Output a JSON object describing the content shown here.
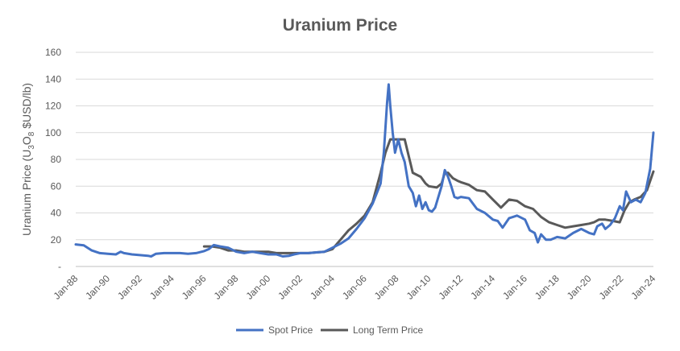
{
  "chart_data": {
    "type": "line",
    "title": "Uranium Price",
    "ylabel_parts": [
      "Uranium Price (U",
      "3",
      "O",
      "8",
      " $USD/lb)"
    ],
    "xlabel": "",
    "ylim": [
      0,
      160
    ],
    "y_ticks": [
      {
        "value": 0,
        "label": "-"
      },
      {
        "value": 20,
        "label": "20"
      },
      {
        "value": 40,
        "label": "40"
      },
      {
        "value": 60,
        "label": "60"
      },
      {
        "value": 80,
        "label": "80"
      },
      {
        "value": 100,
        "label": "100"
      },
      {
        "value": 120,
        "label": "120"
      },
      {
        "value": 140,
        "label": "140"
      },
      {
        "value": 160,
        "label": "160"
      }
    ],
    "x_ticks": [
      {
        "value": 1988,
        "label": "Jan-88"
      },
      {
        "value": 1990,
        "label": "Jan-90"
      },
      {
        "value": 1992,
        "label": "Jan-92"
      },
      {
        "value": 1994,
        "label": "Jan-94"
      },
      {
        "value": 1996,
        "label": "Jan-96"
      },
      {
        "value": 1998,
        "label": "Jan-98"
      },
      {
        "value": 2000,
        "label": "Jan-00"
      },
      {
        "value": 2002,
        "label": "Jan-02"
      },
      {
        "value": 2004,
        "label": "Jan-04"
      },
      {
        "value": 2006,
        "label": "Jan-06"
      },
      {
        "value": 2008,
        "label": "Jan-08"
      },
      {
        "value": 2010,
        "label": "Jan-10"
      },
      {
        "value": 2012,
        "label": "Jan-12"
      },
      {
        "value": 2014,
        "label": "Jan-14"
      },
      {
        "value": 2016,
        "label": "Jan-16"
      },
      {
        "value": 2018,
        "label": "Jan-18"
      },
      {
        "value": 2020,
        "label": "Jan-20"
      },
      {
        "value": 2022,
        "label": "Jan-22"
      },
      {
        "value": 2024,
        "label": "Jan-24"
      }
    ],
    "xlim": [
      1988,
      2024
    ],
    "grid": true,
    "legend_position": "bottom",
    "series": [
      {
        "name": "Spot Price",
        "color": "#4472C4",
        "x": [
          1988.0,
          1988.5,
          1989.0,
          1989.5,
          1990.0,
          1990.5,
          1990.8,
          1991.0,
          1991.5,
          1992.0,
          1992.5,
          1992.7,
          1993.0,
          1993.5,
          1994.0,
          1994.5,
          1995.0,
          1995.5,
          1996.0,
          1996.3,
          1996.6,
          1997.0,
          1997.5,
          1998.0,
          1998.5,
          1999.0,
          1999.5,
          2000.0,
          2000.5,
          2000.9,
          2001.3,
          2001.6,
          2002.0,
          2002.5,
          2003.0,
          2003.5,
          2004.0,
          2004.5,
          2005.0,
          2005.5,
          2006.0,
          2006.5,
          2007.0,
          2007.2,
          2007.4,
          2007.5,
          2007.6,
          2007.75,
          2007.9,
          2008.1,
          2008.3,
          2008.5,
          2008.75,
          2009.0,
          2009.2,
          2009.4,
          2009.6,
          2009.8,
          2010.0,
          2010.2,
          2010.4,
          2010.6,
          2010.8,
          2011.0,
          2011.2,
          2011.4,
          2011.6,
          2011.8,
          2012.0,
          2012.5,
          2013.0,
          2013.5,
          2014.0,
          2014.3,
          2014.6,
          2015.0,
          2015.5,
          2016.0,
          2016.3,
          2016.6,
          2016.8,
          2017.0,
          2017.3,
          2017.6,
          2018.0,
          2018.5,
          2019.0,
          2019.5,
          2020.0,
          2020.3,
          2020.5,
          2020.8,
          2021.0,
          2021.3,
          2021.6,
          2021.9,
          2022.1,
          2022.3,
          2022.6,
          2022.9,
          2023.2,
          2023.5,
          2023.8,
          2024.0
        ],
        "values": [
          16.5,
          15.8,
          12,
          10,
          9.5,
          9,
          11,
          10,
          9,
          8.5,
          8,
          7.5,
          9.5,
          10,
          10,
          10,
          9.5,
          10,
          11.5,
          13,
          16,
          15,
          14,
          11,
          10,
          11,
          10,
          9,
          9,
          7.5,
          8,
          9,
          10,
          10,
          10.5,
          11,
          14,
          17,
          21,
          28,
          36,
          47,
          62,
          85,
          122,
          136,
          120,
          100,
          85,
          95,
          85,
          78,
          60,
          55,
          45,
          53,
          43,
          48,
          42,
          41,
          44,
          52,
          60,
          72,
          67,
          60,
          52,
          51,
          52,
          51,
          43,
          40,
          35,
          34,
          29,
          36,
          38,
          35,
          27,
          25,
          18,
          24,
          20,
          20,
          22,
          21,
          25,
          28,
          25,
          24,
          30,
          32,
          28,
          31,
          36,
          45,
          42,
          56,
          48,
          50,
          48,
          55,
          73,
          100
        ],
        "width": 3
      },
      {
        "name": "Long Term Price",
        "color": "#595959",
        "x": [
          1996.0,
          1996.5,
          1997.0,
          1997.5,
          1998.0,
          1998.5,
          1999.0,
          1999.5,
          2000.0,
          2000.5,
          2001.0,
          2001.5,
          2002.0,
          2002.5,
          2003.0,
          2003.5,
          2004.0,
          2004.5,
          2005.0,
          2005.5,
          2006.0,
          2006.5,
          2007.0,
          2007.3,
          2007.6,
          2008.0,
          2008.5,
          2008.8,
          2009.0,
          2009.5,
          2009.8,
          2010.0,
          2010.5,
          2010.8,
          2011.0,
          2011.2,
          2011.5,
          2011.8,
          2012.0,
          2012.5,
          2013.0,
          2013.5,
          2014.0,
          2014.5,
          2015.0,
          2015.5,
          2016.0,
          2016.5,
          2017.0,
          2017.5,
          2018.0,
          2018.5,
          2019.0,
          2019.5,
          2020.0,
          2020.3,
          2020.6,
          2021.0,
          2021.5,
          2021.9,
          2022.2,
          2022.5,
          2022.8,
          2023.2,
          2023.6,
          2024.0
        ],
        "values": [
          15,
          15,
          14,
          12,
          12,
          11,
          11,
          11,
          11,
          10,
          10,
          10,
          10,
          10,
          10.5,
          11,
          13,
          20,
          27,
          32,
          38,
          48,
          70,
          85,
          95,
          95,
          95,
          80,
          70,
          67,
          62,
          60,
          59,
          62,
          70,
          70,
          66,
          64,
          63,
          61,
          57,
          56,
          50,
          44,
          50,
          49,
          45,
          43,
          37,
          33,
          31,
          29,
          30,
          31,
          32,
          33,
          35,
          35,
          34,
          33,
          42,
          48,
          50,
          52,
          57,
          71
        ],
        "width": 3
      }
    ]
  }
}
